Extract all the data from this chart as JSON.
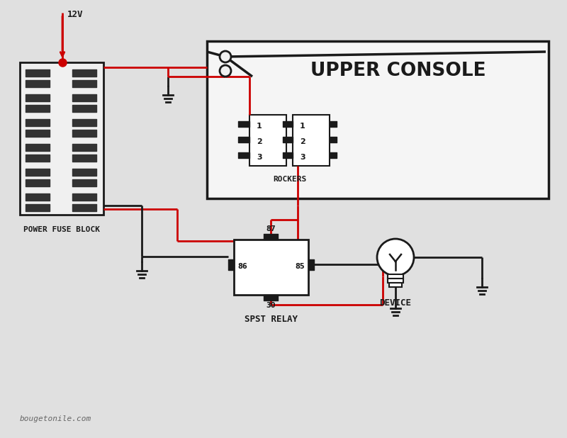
{
  "bg_color": "#e0e0e0",
  "wire_black": "#1a1a1a",
  "wire_red": "#cc0000",
  "title": "UPPER CONSOLE",
  "label_power_fuse": "POWER FUSE BLOCK",
  "label_rockers": "ROCKERS",
  "label_relay": "SPST RELAY",
  "label_device": "DEVICE",
  "label_12v": "12V",
  "label_website": "bougetonile.com",
  "relay_labels": [
    "87",
    "86",
    "85",
    "30"
  ],
  "rocker1_labels": [
    "1",
    "2",
    "3"
  ],
  "rocker2_labels": [
    "1",
    "2",
    "3"
  ]
}
